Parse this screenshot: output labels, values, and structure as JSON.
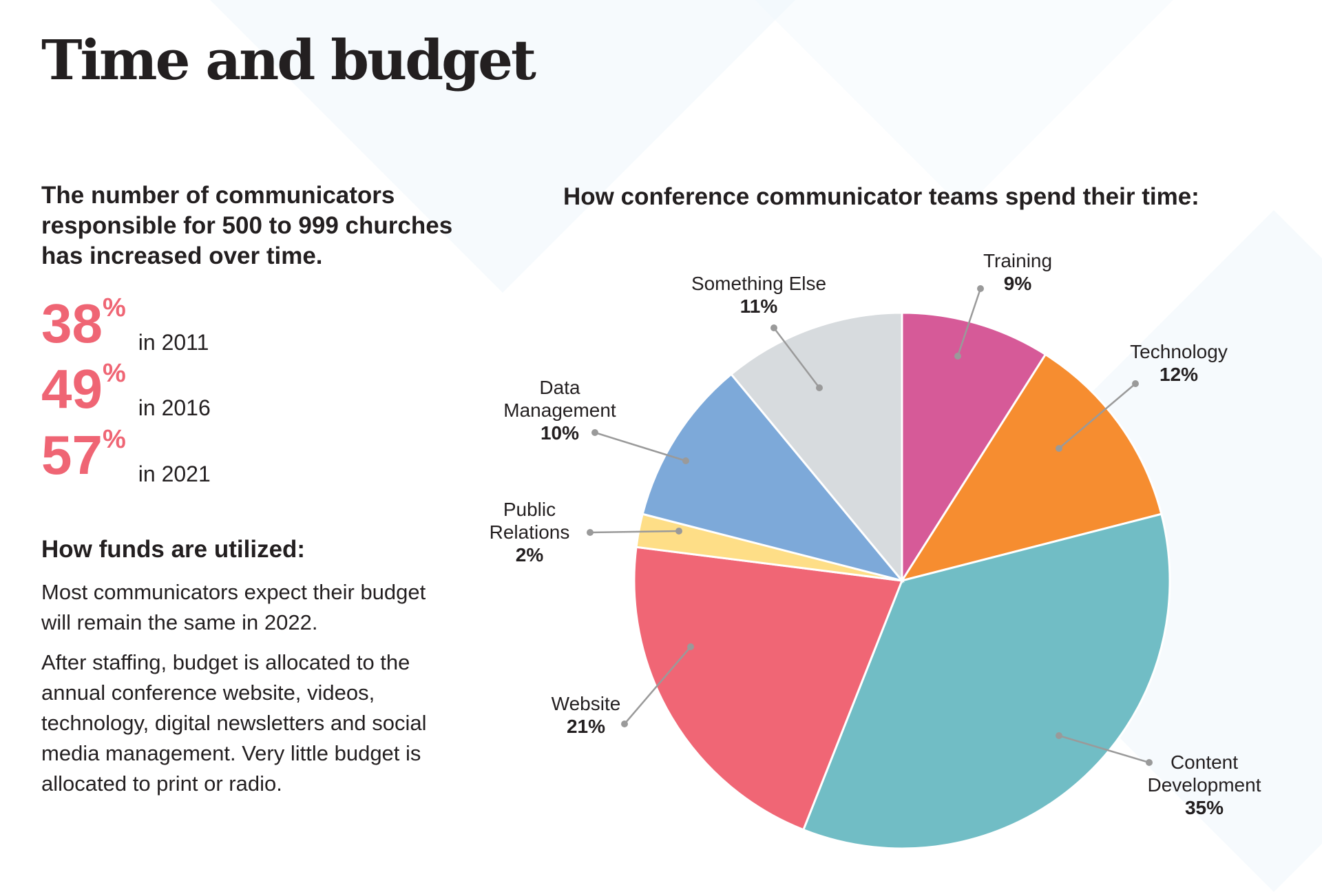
{
  "title": "Time and budget",
  "left": {
    "lead": "The number of communicators responsible for 500 to 999 churches has increased over time.",
    "stats": [
      {
        "value": "38",
        "unit": "%",
        "label": "in 2011"
      },
      {
        "value": "49",
        "unit": "%",
        "label": "in 2016"
      },
      {
        "value": "57",
        "unit": "%",
        "label": "in 2021"
      }
    ],
    "funds_heading": "How funds are utilized:",
    "paragraphs": [
      "Most communicators expect their budget will remain the same in 2022.",
      "After staffing, budget is allocated to the annual conference website, videos, technology, digital newsletters and social media management. Very little budget is allocated to print or radio."
    ],
    "accent_color": "#ef6574"
  },
  "chart_data": {
    "type": "pie",
    "title": "How conference communicator teams spend their time:",
    "start": "top, clockwise",
    "unit": "%",
    "slices": [
      {
        "name": "Training",
        "value": 9,
        "color": "#d65a98"
      },
      {
        "name": "Technology",
        "value": 12,
        "color": "#f68d30"
      },
      {
        "name": "Content Development",
        "value": 35,
        "color": "#71bdc5"
      },
      {
        "name": "Website",
        "value": 21,
        "color": "#f06675"
      },
      {
        "name": "Public Relations",
        "value": 2,
        "color": "#fede87"
      },
      {
        "name": "Data Management",
        "value": 10,
        "color": "#7da9d9"
      },
      {
        "name": "Something Else",
        "value": 11,
        "color": "#d7dbde"
      }
    ]
  }
}
